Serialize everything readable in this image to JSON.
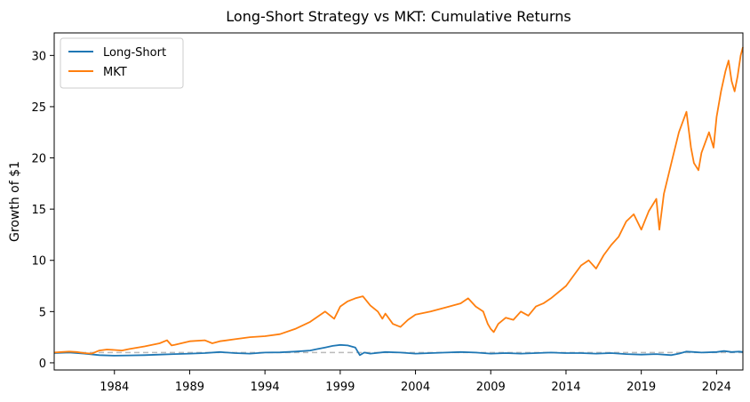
{
  "chart_data": {
    "type": "line",
    "title": "Long-Short Strategy vs MKT: Cumulative Returns",
    "xlabel": "",
    "ylabel": "Growth of $1",
    "xlim": [
      1980.0,
      2025.75
    ],
    "ylim": [
      -0.7,
      32.2
    ],
    "x_ticks": [
      1984,
      1989,
      1994,
      1999,
      2004,
      2009,
      2014,
      2019,
      2024
    ],
    "y_ticks": [
      0,
      5,
      10,
      15,
      20,
      25,
      30
    ],
    "reference_line": {
      "y": 1,
      "style": "dashed",
      "color": "#bbbbbb"
    },
    "legend": {
      "location": "upper-left"
    },
    "series": [
      {
        "name": "Long-Short",
        "color": "#1f77b4",
        "points": [
          [
            1980.0,
            0.95
          ],
          [
            1981.0,
            1.0
          ],
          [
            1982.0,
            0.9
          ],
          [
            1983.0,
            0.75
          ],
          [
            1984.0,
            0.7
          ],
          [
            1985.0,
            0.72
          ],
          [
            1986.0,
            0.75
          ],
          [
            1987.0,
            0.8
          ],
          [
            1988.0,
            0.85
          ],
          [
            1989.0,
            0.9
          ],
          [
            1990.0,
            0.95
          ],
          [
            1991.0,
            1.05
          ],
          [
            1992.0,
            0.95
          ],
          [
            1993.0,
            0.9
          ],
          [
            1994.0,
            1.0
          ],
          [
            1995.0,
            1.02
          ],
          [
            1996.0,
            1.1
          ],
          [
            1997.0,
            1.2
          ],
          [
            1997.5,
            1.35
          ],
          [
            1998.0,
            1.5
          ],
          [
            1998.5,
            1.65
          ],
          [
            1999.0,
            1.75
          ],
          [
            1999.5,
            1.7
          ],
          [
            2000.0,
            1.5
          ],
          [
            2000.3,
            0.75
          ],
          [
            2000.6,
            1.0
          ],
          [
            2001.0,
            0.9
          ],
          [
            2002.0,
            1.05
          ],
          [
            2003.0,
            1.0
          ],
          [
            2004.0,
            0.9
          ],
          [
            2005.0,
            0.95
          ],
          [
            2006.0,
            1.0
          ],
          [
            2007.0,
            1.05
          ],
          [
            2008.0,
            1.0
          ],
          [
            2009.0,
            0.9
          ],
          [
            2010.0,
            0.95
          ],
          [
            2011.0,
            0.9
          ],
          [
            2012.0,
            0.95
          ],
          [
            2013.0,
            1.0
          ],
          [
            2014.0,
            0.95
          ],
          [
            2015.0,
            0.95
          ],
          [
            2016.0,
            0.9
          ],
          [
            2017.0,
            0.95
          ],
          [
            2018.0,
            0.85
          ],
          [
            2019.0,
            0.8
          ],
          [
            2020.0,
            0.85
          ],
          [
            2021.0,
            0.75
          ],
          [
            2021.5,
            0.9
          ],
          [
            2022.0,
            1.1
          ],
          [
            2022.5,
            1.05
          ],
          [
            2023.0,
            1.0
          ],
          [
            2024.0,
            1.05
          ],
          [
            2024.5,
            1.15
          ],
          [
            2025.0,
            1.05
          ],
          [
            2025.5,
            1.1
          ],
          [
            2025.75,
            1.05
          ]
        ]
      },
      {
        "name": "MKT",
        "color": "#ff7f0e",
        "points": [
          [
            1980.0,
            1.0
          ],
          [
            1980.5,
            1.05
          ],
          [
            1981.0,
            1.1
          ],
          [
            1981.5,
            1.05
          ],
          [
            1982.0,
            0.95
          ],
          [
            1982.5,
            0.9
          ],
          [
            1983.0,
            1.2
          ],
          [
            1983.5,
            1.3
          ],
          [
            1984.0,
            1.25
          ],
          [
            1984.5,
            1.2
          ],
          [
            1985.0,
            1.35
          ],
          [
            1986.0,
            1.6
          ],
          [
            1987.0,
            1.9
          ],
          [
            1987.5,
            2.2
          ],
          [
            1987.8,
            1.7
          ],
          [
            1988.0,
            1.75
          ],
          [
            1989.0,
            2.1
          ],
          [
            1990.0,
            2.2
          ],
          [
            1990.5,
            1.9
          ],
          [
            1991.0,
            2.1
          ],
          [
            1992.0,
            2.3
          ],
          [
            1993.0,
            2.5
          ],
          [
            1994.0,
            2.6
          ],
          [
            1995.0,
            2.8
          ],
          [
            1996.0,
            3.3
          ],
          [
            1997.0,
            4.0
          ],
          [
            1998.0,
            5.0
          ],
          [
            1998.6,
            4.3
          ],
          [
            1999.0,
            5.5
          ],
          [
            1999.5,
            6.0
          ],
          [
            2000.0,
            6.3
          ],
          [
            2000.5,
            6.5
          ],
          [
            2001.0,
            5.6
          ],
          [
            2001.5,
            5.0
          ],
          [
            2001.8,
            4.3
          ],
          [
            2002.0,
            4.8
          ],
          [
            2002.5,
            3.8
          ],
          [
            2003.0,
            3.5
          ],
          [
            2003.5,
            4.2
          ],
          [
            2004.0,
            4.7
          ],
          [
            2005.0,
            5.0
          ],
          [
            2006.0,
            5.4
          ],
          [
            2007.0,
            5.8
          ],
          [
            2007.5,
            6.3
          ],
          [
            2008.0,
            5.5
          ],
          [
            2008.5,
            5.0
          ],
          [
            2008.8,
            3.8
          ],
          [
            2009.0,
            3.3
          ],
          [
            2009.2,
            3.0
          ],
          [
            2009.5,
            3.8
          ],
          [
            2010.0,
            4.4
          ],
          [
            2010.5,
            4.2
          ],
          [
            2011.0,
            5.0
          ],
          [
            2011.5,
            4.6
          ],
          [
            2012.0,
            5.5
          ],
          [
            2012.5,
            5.8
          ],
          [
            2013.0,
            6.3
          ],
          [
            2014.0,
            7.5
          ],
          [
            2014.5,
            8.5
          ],
          [
            2015.0,
            9.5
          ],
          [
            2015.5,
            10.0
          ],
          [
            2016.0,
            9.2
          ],
          [
            2016.5,
            10.5
          ],
          [
            2017.0,
            11.5
          ],
          [
            2017.5,
            12.3
          ],
          [
            2018.0,
            13.8
          ],
          [
            2018.5,
            14.5
          ],
          [
            2019.0,
            13.0
          ],
          [
            2019.5,
            14.8
          ],
          [
            2020.0,
            16.0
          ],
          [
            2020.2,
            13.0
          ],
          [
            2020.5,
            16.5
          ],
          [
            2021.0,
            19.5
          ],
          [
            2021.5,
            22.5
          ],
          [
            2022.0,
            24.5
          ],
          [
            2022.3,
            21.0
          ],
          [
            2022.5,
            19.5
          ],
          [
            2022.8,
            18.8
          ],
          [
            2023.0,
            20.5
          ],
          [
            2023.5,
            22.5
          ],
          [
            2023.8,
            21.0
          ],
          [
            2024.0,
            24.0
          ],
          [
            2024.3,
            26.5
          ],
          [
            2024.6,
            28.5
          ],
          [
            2024.8,
            29.5
          ],
          [
            2025.0,
            27.5
          ],
          [
            2025.2,
            26.5
          ],
          [
            2025.4,
            28.0
          ],
          [
            2025.6,
            30.0
          ],
          [
            2025.75,
            30.8
          ]
        ]
      }
    ]
  }
}
